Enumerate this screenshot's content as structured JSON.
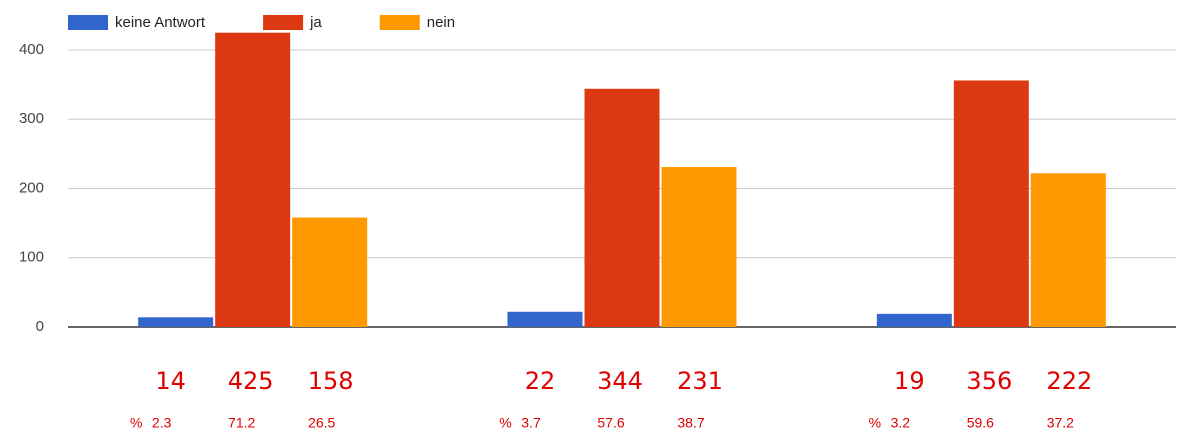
{
  "chart_data": {
    "type": "bar",
    "categories": [
      null,
      null,
      null
    ],
    "series": [
      {
        "name": "keine Antwort",
        "color": "#3366cc",
        "values": [
          14,
          22,
          19
        ]
      },
      {
        "name": "ja",
        "color": "#dc3912",
        "values": [
          425,
          344,
          356
        ]
      },
      {
        "name": "nein",
        "color": "#ff9900",
        "values": [
          158,
          231,
          222
        ]
      }
    ],
    "share_unit": "%",
    "shares": [
      [
        2.3,
        71.2,
        26.5
      ],
      [
        3.7,
        57.6,
        38.7
      ],
      [
        3.2,
        59.6,
        37.2
      ]
    ],
    "ylim": [
      0,
      400
    ],
    "yticks": [
      0,
      100,
      200,
      300,
      400
    ],
    "grid": true,
    "legend": "top-left"
  }
}
